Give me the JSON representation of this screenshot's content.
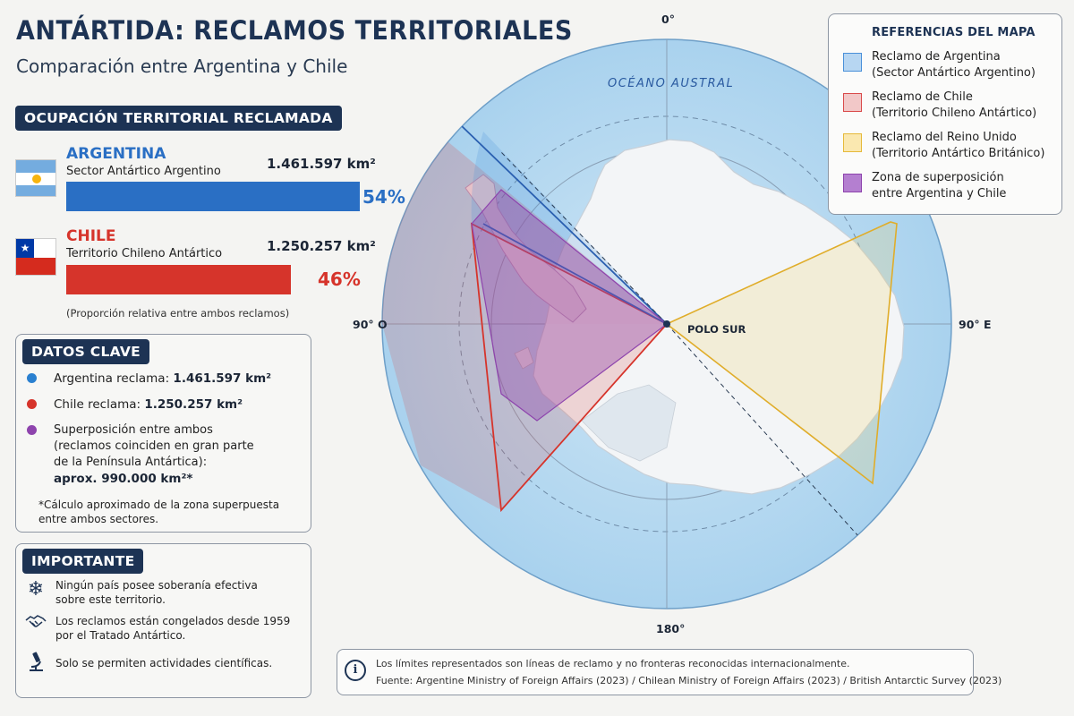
{
  "header": {
    "title": "ANTÁRTIDA: RECLAMOS TERRITORIALES",
    "subtitle": "Comparación entre Argentina y Chile"
  },
  "occupation": {
    "heading": "OCUPACIÓN TERRITORIAL RECLAMADA",
    "argentina": {
      "name": "ARGENTINA",
      "sector": "Sector Antártico Argentino",
      "area": "1.461.597 km²",
      "percent_label": "54%",
      "share": 0.54,
      "color": "#2a6fc4"
    },
    "chile": {
      "name": "CHILE",
      "sector": "Territorio Chileno Antártico",
      "area": "1.250.257 km²",
      "percent_label": "46%",
      "share": 0.46,
      "color": "#d6342b"
    },
    "note": "(Proporción relativa entre ambos reclamos)"
  },
  "key_data": {
    "heading": "DATOS CLAVE",
    "argentina_prefix": "Argentina reclama: ",
    "argentina_value": "1.461.597 km²",
    "chile_prefix": "Chile reclama: ",
    "chile_value": "1.250.257 km²",
    "overlap_title": "Superposición entre ambos",
    "overlap_line1": "(reclamos coinciden en gran parte",
    "overlap_line2": "de la Península Antártica):",
    "overlap_value": "aprox. 990.000 km²*",
    "footnote_line1": "*Cálculo aproximado de la zona superpuesta",
    "footnote_line2": "entre ambos sectores."
  },
  "important": {
    "heading": "IMPORTANTE",
    "items": [
      {
        "icon": "snowflake-icon",
        "line1": "Ningún país posee soberanía efectiva",
        "line2": "sobre este territorio."
      },
      {
        "icon": "handshake-icon",
        "line1": "Los reclamos están congelados desde 1959",
        "line2": "por el Tratado Antártico."
      },
      {
        "icon": "microscope-icon",
        "line1": "Solo se permiten actividades científicas.",
        "line2": ""
      }
    ]
  },
  "map": {
    "label_top": "0°",
    "label_bottom": "180°",
    "label_left": "90° O",
    "label_right": "90° E",
    "ocean": "OCÉANO AUSTRAL",
    "pole": "POLO SUR"
  },
  "legend": {
    "title": "REFERENCIAS DEL MAPA",
    "items": [
      {
        "line1": "Reclamo de Argentina",
        "line2": "(Sector Antártico Argentino)",
        "color": "#4a90d9"
      },
      {
        "line1": "Reclamo de Chile",
        "line2": "(Territorio Chileno Antártico)",
        "color": "#d94a4a"
      },
      {
        "line1": "Reclamo del Reino Unido",
        "line2": "(Territorio Antártico Británico)",
        "color": "#e6b93a"
      },
      {
        "line1": "Zona de superposición",
        "line2": "entre Argentina y Chile",
        "color": "#8e44ad"
      }
    ]
  },
  "footer": {
    "line1": "Los límites representados son líneas de reclamo y no fronteras reconocidas internacionalmente.",
    "line2": "Fuente: Argentine Ministry of Foreign Affairs (2023) / Chilean Ministry of Foreign Affairs (2023) / British Antarctic Survey (2023)"
  }
}
